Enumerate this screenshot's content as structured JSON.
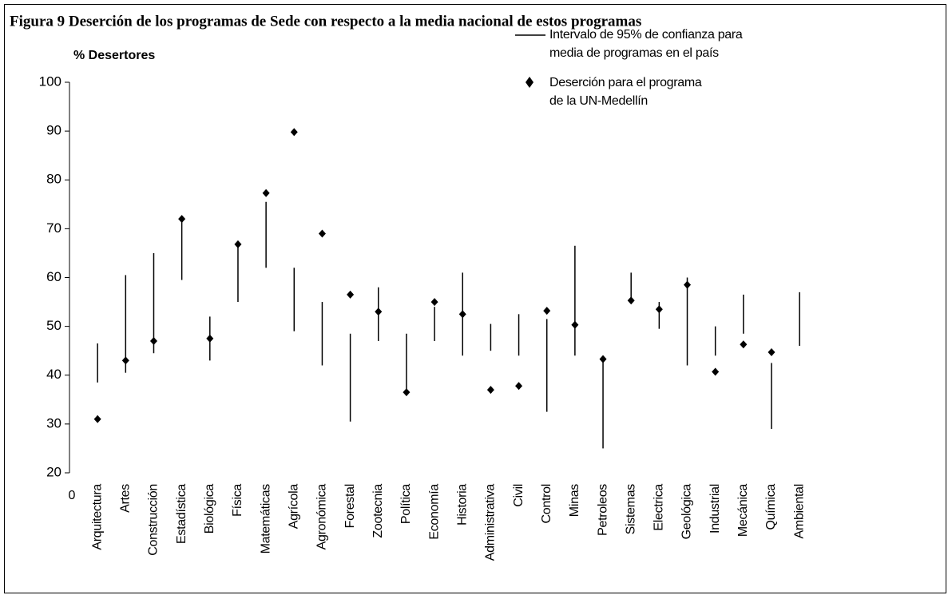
{
  "chart_data": {
    "type": "interval_point",
    "title": "Figura 9 Deserción de los programas de Sede con respecto a la media nacional de estos programas",
    "y_label": "% Desertores",
    "x_origin_label": "0",
    "categories": [
      "Arquitectura",
      "Artes",
      "Construcción",
      "Estadística",
      "Biológica",
      "Física",
      "Matemáticas",
      "Agrícola",
      "Agronómica",
      "Forestal",
      "Zootecnia",
      "Política",
      "Economía",
      "Historia",
      "Administrativa",
      "Civil",
      "Control",
      "Minas",
      "Petroleos",
      "Sistemas",
      "Electrica",
      "Geológica",
      "Industrial",
      "Mecánica",
      "Química",
      "Ambiental"
    ],
    "series": [
      {
        "name": "Intervalo de 95% de confianza para\n media de programas en el país",
        "color": "#000000",
        "low": [
          38.5,
          40.5,
          44.5,
          59.5,
          43,
          55,
          62,
          49,
          42,
          30.5,
          47,
          36.5,
          47,
          44,
          45,
          44,
          32.5,
          44,
          25,
          55,
          49.5,
          42,
          44,
          48.5,
          29,
          46
        ],
        "high": [
          46.5,
          60.5,
          65,
          72,
          52,
          67,
          75.5,
          62,
          55,
          48.5,
          58,
          48.5,
          54,
          61,
          50.5,
          52.5,
          51.5,
          66.5,
          43,
          61,
          55,
          60,
          50,
          56.5,
          42.5,
          57
        ]
      },
      {
        "name": "Deserción para el programa\nde la UN-Medellín",
        "color": "#000000",
        "values": [
          31,
          43,
          47,
          72,
          47.5,
          66.8,
          77.3,
          89.8,
          69,
          56.5,
          53,
          36.5,
          55,
          52.5,
          37,
          37.8,
          53.2,
          50.3,
          43.3,
          55.3,
          53.5,
          58.5,
          40.7,
          46.3,
          44.7,
          null
        ]
      }
    ],
    "ylim": [
      20,
      100
    ],
    "yticks": [
      20,
      30,
      40,
      50,
      60,
      70,
      80,
      90,
      100
    ]
  }
}
